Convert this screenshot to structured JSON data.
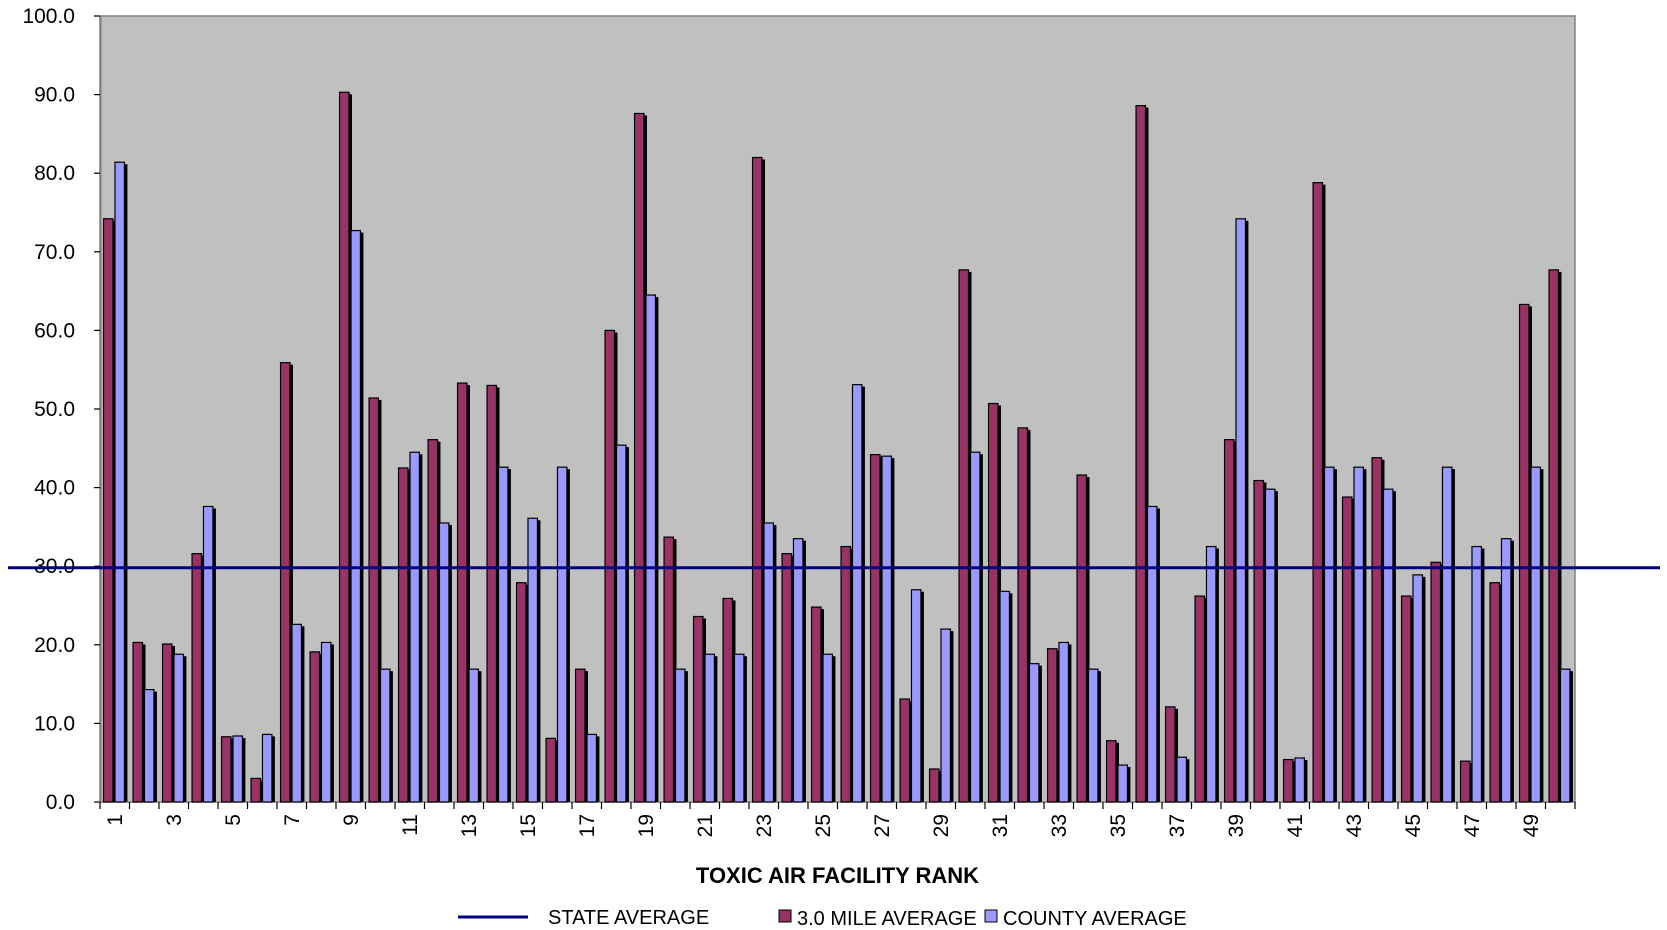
{
  "chart_data": {
    "type": "bar",
    "title": "",
    "xlabel": "TOXIC AIR FACILITY RANK",
    "ylabel": "",
    "ylim": [
      0,
      100
    ],
    "yticks": [
      "0.0",
      "10.0",
      "20.0",
      "30.0",
      "40.0",
      "50.0",
      "60.0",
      "70.0",
      "80.0",
      "90.0",
      "100.0"
    ],
    "xtick_labels": [
      "1",
      "3",
      "5",
      "7",
      "9",
      "11",
      "13",
      "15",
      "17",
      "19",
      "21",
      "23",
      "25",
      "27",
      "29",
      "31",
      "33",
      "35",
      "37",
      "39",
      "41",
      "43",
      "45",
      "47",
      "49"
    ],
    "categories": [
      "1",
      "2",
      "3",
      "4",
      "5",
      "6",
      "7",
      "8",
      "9",
      "10",
      "11",
      "12",
      "13",
      "14",
      "15",
      "16",
      "17",
      "18",
      "19",
      "20",
      "21",
      "22",
      "23",
      "24",
      "25",
      "26",
      "27",
      "28",
      "29",
      "30",
      "31",
      "32",
      "33",
      "34",
      "35",
      "36",
      "37",
      "38",
      "39",
      "40",
      "41",
      "42",
      "43",
      "44",
      "45",
      "46",
      "47",
      "48",
      "49",
      "50"
    ],
    "series": [
      {
        "name": "3.0 MILE AVERAGE",
        "color": "#993366",
        "values": [
          74.2,
          20.3,
          20.1,
          31.6,
          8.3,
          3.0,
          55.9,
          19.1,
          90.3,
          51.4,
          42.5,
          46.1,
          53.3,
          53.0,
          27.9,
          8.1,
          16.9,
          60.0,
          87.6,
          33.7,
          23.6,
          25.9,
          82.0,
          31.6,
          24.8,
          32.5,
          44.2,
          13.1,
          4.2,
          67.7,
          50.7,
          47.6,
          19.5,
          41.6,
          7.8,
          88.6,
          12.1,
          26.2,
          46.1,
          40.9,
          5.4,
          78.8,
          38.8,
          43.8,
          26.2,
          30.5,
          5.2,
          27.9,
          63.3,
          67.7
        ]
      },
      {
        "name": "COUNTY AVERAGE",
        "color": "#9999ff",
        "values": [
          81.4,
          14.3,
          18.8,
          37.6,
          8.4,
          8.6,
          22.6,
          20.3,
          72.7,
          16.9,
          44.5,
          35.5,
          16.9,
          42.6,
          36.1,
          42.6,
          8.6,
          45.4,
          64.5,
          16.9,
          18.8,
          18.8,
          35.5,
          33.5,
          18.8,
          53.1,
          44.0,
          27.0,
          22.0,
          44.5,
          26.8,
          17.6,
          20.3,
          16.9,
          4.7,
          37.6,
          5.7,
          32.5,
          74.2,
          39.8,
          5.6,
          42.6,
          42.6,
          39.8,
          28.9,
          42.6,
          32.5,
          33.5,
          42.6,
          16.9
        ]
      }
    ],
    "reference_line": {
      "name": "STATE AVERAGE",
      "value": 29.8,
      "color": "#000080"
    },
    "plot_background": "#c0c0c0",
    "grid": false,
    "legend_position": "bottom"
  }
}
